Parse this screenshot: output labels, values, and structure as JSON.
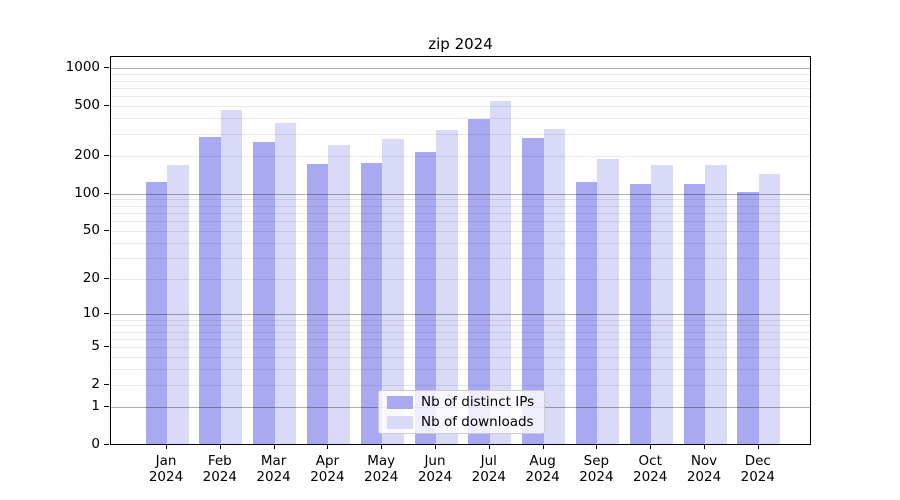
{
  "title": "zip 2024",
  "chart_data": {
    "type": "bar",
    "title": "zip 2024",
    "categories": [
      "Jan",
      "Feb",
      "Mar",
      "Apr",
      "May",
      "Jun",
      "Jul",
      "Aug",
      "Sep",
      "Oct",
      "Nov",
      "Dec"
    ],
    "x_year_label": "2024",
    "series": [
      {
        "name": "Nb of distinct IPs",
        "color": "#a9a9f2",
        "values": [
          122,
          280,
          252,
          168,
          172,
          212,
          385,
          272,
          121,
          117,
          118,
          100
        ]
      },
      {
        "name": "Nb of downloads",
        "color": "#d9d9f8",
        "values": [
          166,
          455,
          360,
          242,
          270,
          318,
          540,
          322,
          185,
          166,
          166,
          142
        ]
      }
    ],
    "y_scale": "log(1+v)",
    "y_ticks": [
      0,
      1,
      2,
      5,
      10,
      20,
      50,
      100,
      200,
      500,
      1000
    ],
    "ylim": [
      0,
      1230
    ],
    "grid": true,
    "grid_minor_values_per_decade": [
      2,
      3,
      4,
      5,
      6,
      7,
      8,
      9
    ],
    "legend_position": "lower-center",
    "legend_entries": [
      "Nb of distinct IPs",
      "Nb of downloads"
    ]
  },
  "legend": {
    "item1": "Nb of distinct IPs",
    "item2": "Nb of downloads"
  },
  "colors": {
    "bar_distinct_ips": "#a9a9f2",
    "bar_downloads": "#d9d9f8",
    "grid_major": "#b3b3b3",
    "grid_minor": "#e8e8e8",
    "axis": "#000000",
    "legend_border": "#cccccc"
  }
}
